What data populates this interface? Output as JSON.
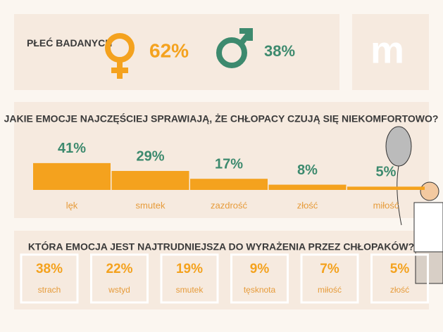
{
  "gender": {
    "label": "PŁEĆ BADANYCH",
    "female": "62%",
    "male": "38%"
  },
  "chart_data": {
    "type": "bar",
    "title": "JAKIE EMOCJE NAJCZĘŚCIEJ SPRAWIAJĄ, ŻE CHŁOPACY CZUJĄ SIĘ NIEKOMFORTOWO?",
    "categories": [
      "lęk",
      "smutek",
      "zazdrość",
      "złość",
      "miłość"
    ],
    "values": [
      41,
      29,
      17,
      8,
      5
    ],
    "value_labels": [
      "41%",
      "29%",
      "17%",
      "8%",
      "5%"
    ],
    "color": "#f4a21e",
    "label_color": "#3d8a6e"
  },
  "difficult": {
    "title": "KTÓRA EMOCJA JEST NAJTRUDNIEJSZA DO WYRAŻENIA PRZEZ CHŁOPAKÓW?",
    "items": [
      {
        "value": "38%",
        "label": "strach"
      },
      {
        "value": "22%",
        "label": "wstyd"
      },
      {
        "value": "19%",
        "label": "smutek"
      },
      {
        "value": "9%",
        "label": "tęsknota"
      },
      {
        "value": "7%",
        "label": "miłość"
      },
      {
        "value": "5%",
        "label": "złość"
      }
    ]
  }
}
